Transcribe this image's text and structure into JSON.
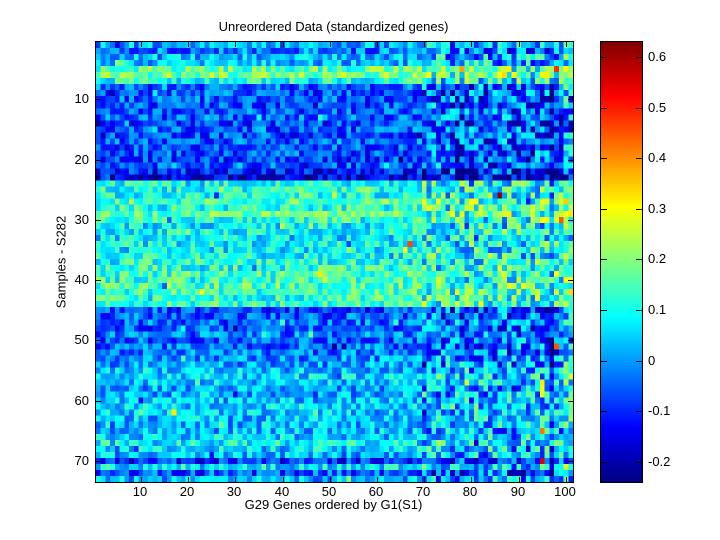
{
  "colors": {
    "background": "#ffffff",
    "axes": "#000000",
    "text": "#000000"
  },
  "chart_data": {
    "type": "heatmap",
    "title": "Unreordered Data (standardized genes)",
    "xlabel": "G29 Genes ordered by G1(S1)",
    "ylabel": "Samples - S282",
    "n_cols": 101,
    "n_rows": 73,
    "x_ticks": [
      10,
      20,
      30,
      40,
      50,
      60,
      70,
      80,
      90,
      100
    ],
    "y_ticks": [
      10,
      20,
      30,
      40,
      50,
      60,
      70
    ],
    "grid": false,
    "colormap": "jet",
    "color_axis": [
      -0.24,
      0.63
    ],
    "colorbar_position": "right",
    "colorbar_ticks": [
      0.6,
      0.5,
      0.4,
      0.3,
      0.2,
      0.1,
      0,
      -0.1,
      -0.2
    ],
    "row_means": [
      0.01,
      -0.03,
      0.02,
      0.03,
      0.16,
      0.18,
      0.1,
      -0.04,
      -0.06,
      -0.05,
      -0.07,
      -0.06,
      -0.05,
      -0.08,
      -0.06,
      -0.07,
      -0.05,
      -0.07,
      -0.06,
      -0.08,
      -0.06,
      -0.11,
      -0.16,
      0.09,
      0.11,
      0.1,
      0.15,
      0.12,
      0.16,
      0.12,
      0.08,
      0.1,
      0.07,
      0.09,
      0.08,
      0.09,
      0.11,
      0.12,
      0.14,
      0.13,
      0.15,
      0.14,
      0.12,
      0.13,
      -0.07,
      -0.05,
      -0.04,
      -0.06,
      -0.03,
      -0.05,
      -0.04,
      -0.03,
      -0.01,
      0.0,
      0.03,
      0.06,
      0.04,
      0.01,
      0.02,
      0.03,
      0.05,
      0.04,
      0.03,
      0.02,
      0.03,
      0.04,
      0.08,
      0.05,
      0.02,
      -0.1,
      0.06,
      -0.06,
      0.01
    ],
    "noise_sd": 0.055,
    "high_variance_cols_start": 70,
    "high_variance_noise_sd": 0.09,
    "col_offsets": {
      "89": -0.03,
      "97": -0.08,
      "100": 0.08,
      "101": 0.04
    },
    "outliers": [
      [
        5,
        98,
        0.48
      ],
      [
        26,
        86,
        0.62
      ],
      [
        30,
        99,
        0.45
      ],
      [
        34,
        67,
        0.46
      ],
      [
        35,
        66,
        0.3
      ],
      [
        51,
        98,
        0.45
      ],
      [
        57,
        95,
        0.32
      ],
      [
        58,
        95,
        0.3
      ],
      [
        59,
        95,
        0.28
      ],
      [
        62,
        17,
        0.32
      ],
      [
        65,
        95,
        0.42
      ],
      [
        70,
        95,
        0.55
      ]
    ]
  }
}
